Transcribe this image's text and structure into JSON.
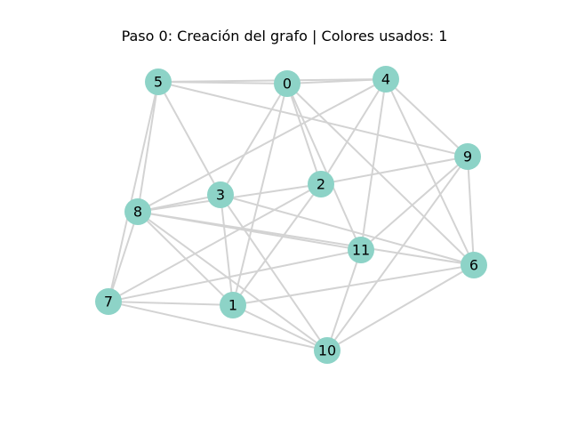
{
  "title": "Paso 0: Creación del grafo | Colores usados: 1",
  "colors": {
    "node": "#8dd3c7",
    "edge": "#d3d3d3",
    "text": "#000000"
  },
  "graph": {
    "nodes": [
      {
        "id": "0",
        "label": "0"
      },
      {
        "id": "1",
        "label": "1"
      },
      {
        "id": "2",
        "label": "2"
      },
      {
        "id": "3",
        "label": "3"
      },
      {
        "id": "4",
        "label": "4"
      },
      {
        "id": "5",
        "label": "5"
      },
      {
        "id": "6",
        "label": "6"
      },
      {
        "id": "7",
        "label": "7"
      },
      {
        "id": "8",
        "label": "8"
      },
      {
        "id": "9",
        "label": "9"
      },
      {
        "id": "10",
        "label": "10"
      },
      {
        "id": "11",
        "label": "11"
      }
    ],
    "edges": [
      [
        "5",
        "0"
      ],
      [
        "5",
        "4"
      ],
      [
        "5",
        "9"
      ],
      [
        "5",
        "8"
      ],
      [
        "5",
        "7"
      ],
      [
        "5",
        "3"
      ],
      [
        "0",
        "4"
      ],
      [
        "0",
        "2"
      ],
      [
        "0",
        "11"
      ],
      [
        "0",
        "3"
      ],
      [
        "0",
        "1"
      ],
      [
        "0",
        "6"
      ],
      [
        "4",
        "8"
      ],
      [
        "4",
        "2"
      ],
      [
        "4",
        "9"
      ],
      [
        "4",
        "11"
      ],
      [
        "4",
        "6"
      ],
      [
        "9",
        "2"
      ],
      [
        "9",
        "6"
      ],
      [
        "9",
        "11"
      ],
      [
        "9",
        "10"
      ],
      [
        "3",
        "8"
      ],
      [
        "3",
        "6"
      ],
      [
        "3",
        "1"
      ],
      [
        "3",
        "10"
      ],
      [
        "2",
        "8"
      ],
      [
        "2",
        "7"
      ],
      [
        "2",
        "1"
      ],
      [
        "8",
        "7"
      ],
      [
        "8",
        "11"
      ],
      [
        "8",
        "6"
      ],
      [
        "8",
        "1"
      ],
      [
        "8",
        "10"
      ],
      [
        "11",
        "7"
      ],
      [
        "11",
        "10"
      ],
      [
        "6",
        "1"
      ],
      [
        "6",
        "10"
      ],
      [
        "7",
        "1"
      ],
      [
        "7",
        "10"
      ],
      [
        "1",
        "10"
      ]
    ]
  }
}
